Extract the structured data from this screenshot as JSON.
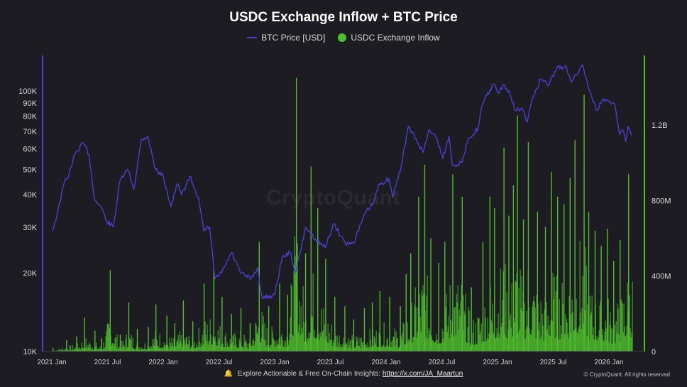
{
  "chart_data": {
    "type": "line",
    "title": "USDC Exchange Inflow + BTC Price",
    "xlabel": "",
    "x_ticks": [
      "2021 Jan",
      "2021 Jul",
      "2022 Jan",
      "2022 Jul",
      "2023 Jan",
      "2023 Jul",
      "2024 Jan",
      "2024 Jul",
      "2025 Jan",
      "2025 Jul",
      "2026 Jan"
    ],
    "y_left": {
      "label": "",
      "scale": "log",
      "range": [
        10000,
        150000
      ],
      "ticks": [
        10000,
        20000,
        30000,
        40000,
        50000,
        60000,
        70000,
        80000,
        90000,
        100000
      ],
      "tick_labels": [
        "10K",
        "20K",
        "30K",
        "40K",
        "50K",
        "60K",
        "70K",
        "80K",
        "90K",
        "100K"
      ]
    },
    "y_right": {
      "label": "",
      "scale": "linear",
      "range": [
        0,
        1600000000
      ],
      "ticks": [
        0,
        400000000,
        800000000,
        1200000000
      ],
      "tick_labels": [
        "0",
        "400M",
        "800M",
        "1.2B"
      ]
    },
    "series": [
      {
        "name": "BTC Price [USD]",
        "type": "line",
        "axis": "left",
        "color": "#4b3fcf",
        "points": [
          [
            "2021-01-01",
            29000
          ],
          [
            "2021-01-20",
            35000
          ],
          [
            "2021-02-10",
            45000
          ],
          [
            "2021-02-25",
            48000
          ],
          [
            "2021-03-15",
            57000
          ],
          [
            "2021-04-13",
            63000
          ],
          [
            "2021-05-01",
            57000
          ],
          [
            "2021-05-20",
            38000
          ],
          [
            "2021-06-10",
            36000
          ],
          [
            "2021-06-25",
            32000
          ],
          [
            "2021-07-20",
            30000
          ],
          [
            "2021-08-10",
            45000
          ],
          [
            "2021-09-05",
            50000
          ],
          [
            "2021-09-25",
            42000
          ],
          [
            "2021-10-20",
            65000
          ],
          [
            "2021-11-10",
            67000
          ],
          [
            "2021-12-05",
            50000
          ],
          [
            "2021-12-31",
            47000
          ],
          [
            "2022-01-25",
            36000
          ],
          [
            "2022-02-15",
            44000
          ],
          [
            "2022-03-01",
            40000
          ],
          [
            "2022-03-28",
            47000
          ],
          [
            "2022-04-25",
            39000
          ],
          [
            "2022-05-12",
            29000
          ],
          [
            "2022-06-01",
            30000
          ],
          [
            "2022-06-18",
            19000
          ],
          [
            "2022-07-10",
            20000
          ],
          [
            "2022-08-12",
            24000
          ],
          [
            "2022-09-10",
            20000
          ],
          [
            "2022-10-15",
            19000
          ],
          [
            "2022-11-05",
            21000
          ],
          [
            "2022-11-20",
            16000
          ],
          [
            "2022-12-31",
            16500
          ],
          [
            "2023-01-25",
            23000
          ],
          [
            "2023-02-20",
            24000
          ],
          [
            "2023-03-10",
            20000
          ],
          [
            "2023-04-12",
            30000
          ],
          [
            "2023-05-15",
            27000
          ],
          [
            "2023-06-15",
            25000
          ],
          [
            "2023-07-13",
            31000
          ],
          [
            "2023-08-20",
            26000
          ],
          [
            "2023-09-15",
            26000
          ],
          [
            "2023-10-25",
            34000
          ],
          [
            "2023-11-20",
            37000
          ],
          [
            "2023-12-10",
            44000
          ],
          [
            "2024-01-11",
            46000
          ],
          [
            "2024-01-23",
            39000
          ],
          [
            "2024-02-20",
            52000
          ],
          [
            "2024-03-14",
            73000
          ],
          [
            "2024-04-15",
            63000
          ],
          [
            "2024-05-01",
            58000
          ],
          [
            "2024-05-20",
            71000
          ],
          [
            "2024-06-15",
            66000
          ],
          [
            "2024-07-05",
            55000
          ],
          [
            "2024-07-25",
            67000
          ],
          [
            "2024-08-05",
            52000
          ],
          [
            "2024-09-06",
            53000
          ],
          [
            "2024-09-27",
            66000
          ],
          [
            "2024-10-29",
            72000
          ],
          [
            "2024-11-12",
            89000
          ],
          [
            "2024-12-17",
            106000
          ],
          [
            "2025-01-05",
            98000
          ],
          [
            "2025-01-21",
            106000
          ],
          [
            "2025-02-10",
            97000
          ],
          [
            "2025-02-28",
            84000
          ],
          [
            "2025-03-20",
            86000
          ],
          [
            "2025-04-08",
            76000
          ],
          [
            "2025-04-25",
            94000
          ],
          [
            "2025-05-22",
            111000
          ],
          [
            "2025-06-15",
            105000
          ],
          [
            "2025-07-14",
            122000
          ],
          [
            "2025-08-14",
            124000
          ],
          [
            "2025-09-01",
            108000
          ],
          [
            "2025-10-06",
            126000
          ],
          [
            "2025-10-20",
            110000
          ],
          [
            "2025-11-21",
            84000
          ],
          [
            "2025-12-10",
            92000
          ],
          [
            "2026-01-05",
            91000
          ],
          [
            "2026-01-20",
            89000
          ],
          [
            "2026-02-06",
            68000
          ],
          [
            "2026-02-15",
            71000
          ],
          [
            "2026-02-25",
            64000
          ],
          [
            "2026-03-05",
            73000
          ],
          [
            "2026-03-12",
            70000
          ],
          [
            "2026-03-18",
            68000
          ]
        ]
      },
      {
        "name": "USDC Exchange Inflow",
        "type": "bar",
        "axis": "right",
        "color": "#4fbf2c",
        "points": [
          [
            "2021-01-01",
            20000000
          ],
          [
            "2021-02-15",
            60000000
          ],
          [
            "2021-03-20",
            80000000
          ],
          [
            "2021-04-15",
            180000000
          ],
          [
            "2021-05-19",
            110000000
          ],
          [
            "2021-06-10",
            70000000
          ],
          [
            "2021-07-08",
            430000000
          ],
          [
            "2021-08-10",
            90000000
          ],
          [
            "2021-09-07",
            260000000
          ],
          [
            "2021-10-05",
            120000000
          ],
          [
            "2021-11-10",
            130000000
          ],
          [
            "2021-12-05",
            250000000
          ],
          [
            "2022-01-10",
            190000000
          ],
          [
            "2022-02-05",
            150000000
          ],
          [
            "2022-03-05",
            270000000
          ],
          [
            "2022-04-05",
            160000000
          ],
          [
            "2022-05-12",
            360000000
          ],
          [
            "2022-06-13",
            440000000
          ],
          [
            "2022-07-10",
            290000000
          ],
          [
            "2022-08-10",
            200000000
          ],
          [
            "2022-09-10",
            230000000
          ],
          [
            "2022-10-10",
            150000000
          ],
          [
            "2022-11-09",
            580000000
          ],
          [
            "2022-12-10",
            240000000
          ],
          [
            "2023-01-15",
            360000000
          ],
          [
            "2023-02-10",
            300000000
          ],
          [
            "2023-03-11",
            1450000000
          ],
          [
            "2023-04-10",
            520000000
          ],
          [
            "2023-04-28",
            980000000
          ],
          [
            "2023-05-20",
            760000000
          ],
          [
            "2023-06-15",
            490000000
          ],
          [
            "2023-07-15",
            290000000
          ],
          [
            "2023-08-17",
            240000000
          ],
          [
            "2023-09-15",
            170000000
          ],
          [
            "2023-10-20",
            230000000
          ],
          [
            "2023-11-15",
            260000000
          ],
          [
            "2023-12-10",
            320000000
          ],
          [
            "2024-01-11",
            290000000
          ],
          [
            "2024-02-15",
            240000000
          ],
          [
            "2024-03-05",
            410000000
          ],
          [
            "2024-03-20",
            520000000
          ],
          [
            "2024-04-15",
            820000000
          ],
          [
            "2024-05-05",
            990000000
          ],
          [
            "2024-05-25",
            600000000
          ],
          [
            "2024-06-20",
            470000000
          ],
          [
            "2024-07-10",
            580000000
          ],
          [
            "2024-08-05",
            940000000
          ],
          [
            "2024-09-05",
            820000000
          ],
          [
            "2024-10-05",
            340000000
          ],
          [
            "2024-11-12",
            580000000
          ],
          [
            "2024-12-05",
            820000000
          ],
          [
            "2024-12-20",
            760000000
          ],
          [
            "2025-01-20",
            1080000000
          ],
          [
            "2025-02-05",
            720000000
          ],
          [
            "2025-02-20",
            880000000
          ],
          [
            "2025-03-05",
            1250000000
          ],
          [
            "2025-03-25",
            700000000
          ],
          [
            "2025-04-10",
            1110000000
          ],
          [
            "2025-05-10",
            740000000
          ],
          [
            "2025-06-05",
            660000000
          ],
          [
            "2025-06-25",
            950000000
          ],
          [
            "2025-07-15",
            820000000
          ],
          [
            "2025-08-05",
            780000000
          ],
          [
            "2025-08-25",
            920000000
          ],
          [
            "2025-09-10",
            1120000000
          ],
          [
            "2025-10-10",
            1360000000
          ],
          [
            "2025-10-25",
            740000000
          ],
          [
            "2025-11-15",
            640000000
          ],
          [
            "2025-12-05",
            560000000
          ],
          [
            "2025-12-25",
            650000000
          ],
          [
            "2026-01-15",
            480000000
          ],
          [
            "2026-02-05",
            590000000
          ],
          [
            "2026-03-05",
            940000000
          ]
        ]
      }
    ],
    "legend": "top-center",
    "grid": false
  },
  "footer": {
    "bell_icon": "bell-icon",
    "text": "Explore Actionable & Free On-Chain Insights:",
    "link": "https://x.com/JA_Maartun",
    "copyright": "© CryptoQuant. All rights reserved"
  },
  "watermark": "CryptoQuant",
  "colors": {
    "background": "#1c1c22",
    "btc": "#4b3fcf",
    "usdc": "#4fbf2c",
    "right_axis_line": "#4fbf2c",
    "left_axis_line": "#4b3fcf"
  }
}
